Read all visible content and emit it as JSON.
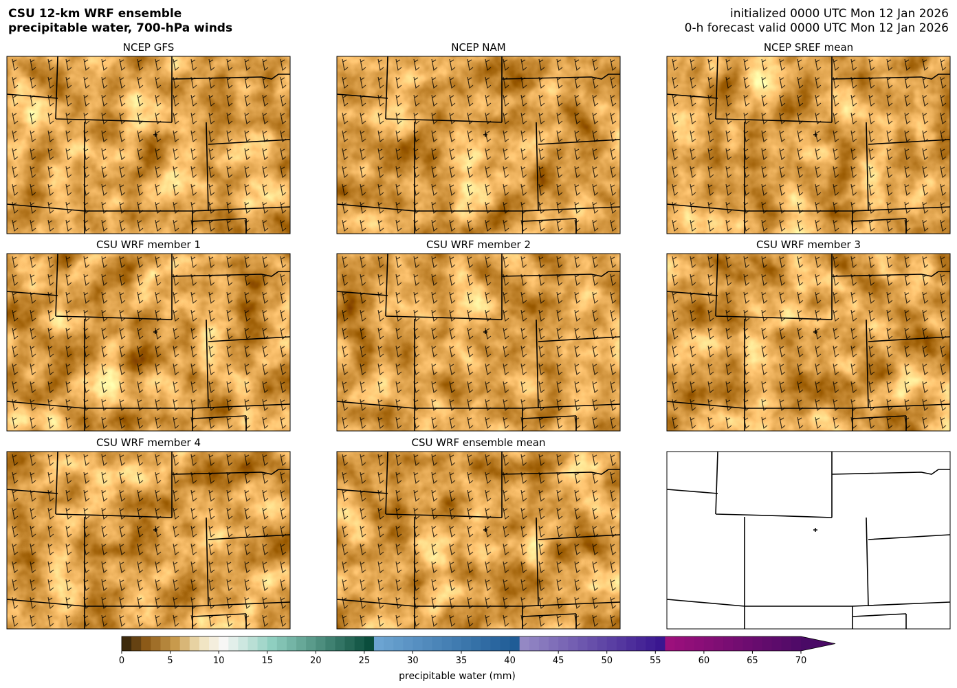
{
  "header": {
    "title": [
      "CSU 12-km WRF ensemble",
      "precipitable water, 700-hPa winds"
    ],
    "info": [
      "initialized 0000 UTC Mon 12 Jan 2026",
      "0-h forecast valid 0000 UTC Mon 12 Jan 2026"
    ]
  },
  "panels": [
    "NCEP GFS",
    "NCEP NAM",
    "NCEP SREF mean",
    "CSU WRF member 1",
    "CSU WRF member 2",
    "CSU WRF member 3",
    "CSU WRF member 4",
    "CSU WRF ensemble mean"
  ],
  "colorbar": {
    "lim": [
      0,
      70
    ],
    "ticks": [
      0,
      5,
      10,
      15,
      20,
      25,
      30,
      35,
      40,
      45,
      50,
      55,
      60,
      65,
      70
    ],
    "label": "precipitable water (mm)"
  }
}
